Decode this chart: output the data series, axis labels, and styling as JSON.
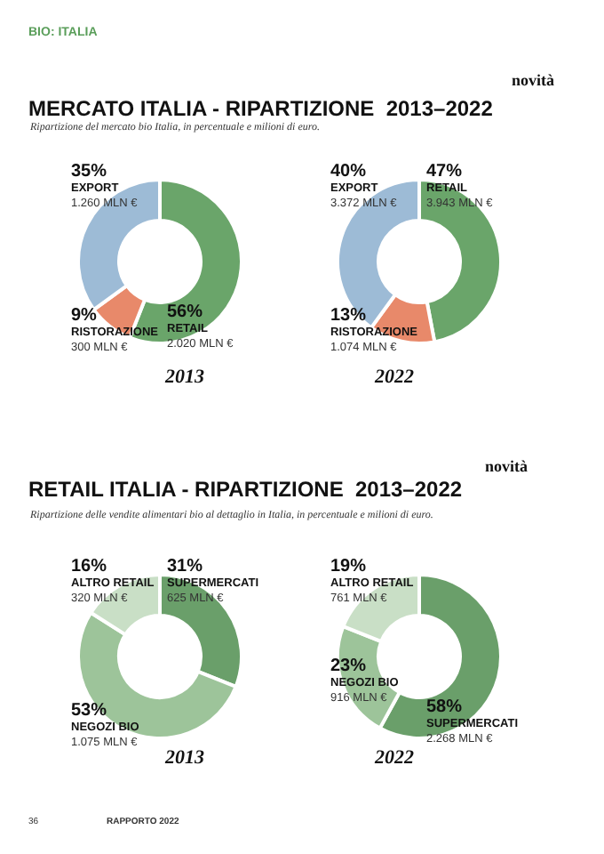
{
  "chart_data": [
    {
      "type": "donut",
      "title": "MERCATO ITALIA - RIPARTIZIONE  2013–2022",
      "subtitle": "Ripartizione del mercato bio Italia, in percentuale e milioni di euro.",
      "xlabel": "2013",
      "categories": [
        "RETAIL",
        "RISTORAZIONE",
        "EXPORT"
      ],
      "values": [
        56,
        9,
        35
      ],
      "colors": [
        "#6aa56a",
        "#e8896a",
        "#9dbbd6"
      ],
      "value_labels": [
        "56%",
        "9%",
        "35%"
      ],
      "annotations": [
        "2.020 MLN €",
        "300 MLN €",
        "1.260 MLN €"
      ]
    },
    {
      "type": "donut",
      "xlabel": "2022",
      "categories": [
        "RETAIL",
        "RISTORAZIONE",
        "EXPORT"
      ],
      "values": [
        47,
        13,
        40
      ],
      "colors": [
        "#6aa56a",
        "#e8896a",
        "#9dbbd6"
      ],
      "value_labels": [
        "47%",
        "13%",
        "40%"
      ],
      "annotations": [
        "3.943 MLN €",
        "1.074 MLN €",
        "3.372 MLN €"
      ]
    },
    {
      "type": "donut",
      "title": "RETAIL ITALIA - RIPARTIZIONE  2013–2022",
      "subtitle": "Ripartizione delle vendite alimentari bio al dettaglio in Italia, in percentuale e milioni di euro.",
      "xlabel": "2013",
      "categories": [
        "SUPERMERCATI",
        "NEGOZI BIO",
        "ALTRO RETAIL"
      ],
      "values": [
        31,
        53,
        16
      ],
      "colors": [
        "#6a9f6a",
        "#9dc49a",
        "#c9dfc6"
      ],
      "value_labels": [
        "31%",
        "53%",
        "16%"
      ],
      "annotations": [
        "625 MLN €",
        "1.075 MLN €",
        "320 MLN €"
      ]
    },
    {
      "type": "donut",
      "xlabel": "2022",
      "categories": [
        "SUPERMERCATI",
        "NEGOZI BIO",
        "ALTRO RETAIL"
      ],
      "values": [
        58,
        23,
        19
      ],
      "colors": [
        "#6a9f6a",
        "#9dc49a",
        "#c9dfc6"
      ],
      "value_labels": [
        "58%",
        "23%",
        "19%"
      ],
      "annotations": [
        "2.268 MLN €",
        "916 MLN €",
        "761 MLN €"
      ]
    },
    {
      "type": "other",
      "annotations": [
        "BIO: ITALIA",
        "novità",
        "novità",
        "36",
        "RAPPORTO 2022"
      ]
    }
  ]
}
